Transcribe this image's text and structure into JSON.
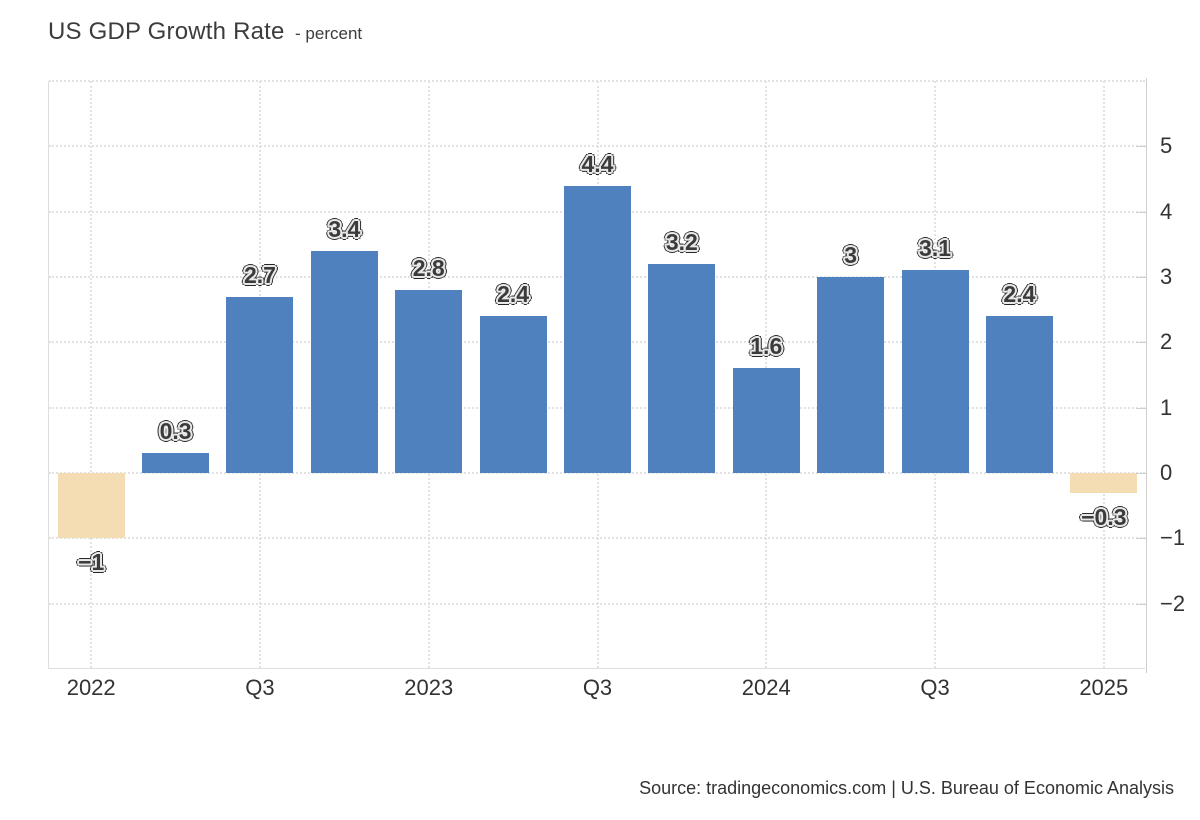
{
  "title": {
    "main": "US GDP Growth Rate",
    "subtitle": "- percent"
  },
  "source_text": "Source: tradingeconomics.com | U.S. Bureau of Economic Analysis",
  "colors": {
    "bar_positive": "#4e81bd",
    "bar_negative": "#f4ddb2",
    "grid": "#e2e2e2",
    "axis_line": "#cfcfcf",
    "plot_border": "#dedede",
    "axis_text": "#333333",
    "label_text": "#3b3b3b",
    "label_halo": "#e9e9e9",
    "label_edge": "#262626"
  },
  "chart_data": {
    "type": "bar",
    "title": "US GDP Growth Rate",
    "ylabel": "percent",
    "xlabel": "",
    "categories": [
      "2022 Q1",
      "2022 Q2",
      "2022 Q3",
      "2022 Q4",
      "2023 Q1",
      "2023 Q2",
      "2023 Q3",
      "2023 Q4",
      "2024 Q1",
      "2024 Q2",
      "2024 Q3",
      "2024 Q4",
      "2025 Q1"
    ],
    "values": [
      -1,
      0.3,
      2.7,
      3.4,
      2.8,
      2.4,
      4.4,
      3.2,
      1.6,
      3,
      3.1,
      2.4,
      -0.3
    ],
    "value_labels": [
      "−1",
      "0.3",
      "2.7",
      "3.4",
      "2.8",
      "2.4",
      "4.4",
      "3.2",
      "1.6",
      "3",
      "3.1",
      "2.4",
      "−0.3"
    ],
    "ylim": [
      -3,
      6
    ],
    "yticks": [
      5,
      4,
      3,
      2,
      1,
      0,
      -1,
      -2
    ],
    "ytick_labels": [
      "5",
      "4",
      "3",
      "2",
      "1",
      "0",
      "−1",
      "−2"
    ],
    "x_ticks": [
      {
        "slot": 0,
        "label": "2022"
      },
      {
        "slot": 2,
        "label": "Q3"
      },
      {
        "slot": 4,
        "label": "2023"
      },
      {
        "slot": 6,
        "label": "Q3"
      },
      {
        "slot": 8,
        "label": "2024"
      },
      {
        "slot": 10,
        "label": "Q3"
      },
      {
        "slot": 12,
        "label": "2025"
      }
    ],
    "grid": true,
    "legend": false,
    "yaxis_position": "right"
  }
}
